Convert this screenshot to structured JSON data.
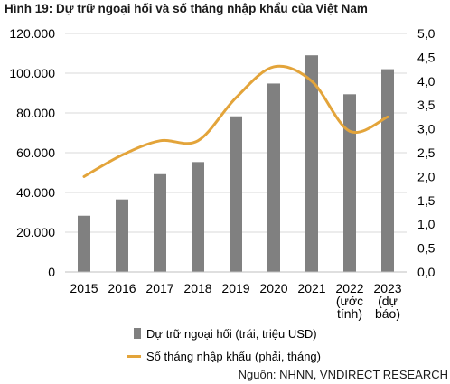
{
  "title": "Hình 19: Dự trữ ngoại hối và số tháng nhập khẩu của Việt Nam",
  "source": "Nguồn: NHNN, VNDIRECT RESEARCH",
  "chart_data": {
    "type": "bar",
    "categories": [
      [
        "2015"
      ],
      [
        "2016"
      ],
      [
        "2017"
      ],
      [
        "2018"
      ],
      [
        "2019"
      ],
      [
        "2020"
      ],
      [
        "2021"
      ],
      [
        "2022",
        "(ước",
        "tính)"
      ],
      [
        "2023",
        "(dự",
        "báo)"
      ]
    ],
    "series": [
      {
        "name": "Dự trữ ngoại hối (trái, triệu USD)",
        "type": "bar",
        "axis": "left",
        "color": "#808080",
        "values": [
          28300,
          36500,
          49200,
          55300,
          78300,
          94800,
          109000,
          89400,
          102000
        ]
      },
      {
        "name": "Số tháng nhập khẩu (phải, tháng)",
        "type": "line",
        "axis": "right",
        "color": "#E3A43A",
        "smooth": true,
        "values": [
          2.0,
          2.45,
          2.75,
          2.75,
          3.65,
          4.3,
          4.0,
          2.95,
          3.25
        ]
      }
    ],
    "y_left": {
      "ylim": [
        0,
        120000
      ],
      "ticks": [
        "0",
        "20.000",
        "40.000",
        "60.000",
        "80.000",
        "100.000",
        "120.000"
      ]
    },
    "y_right": {
      "ylim": [
        0,
        5
      ],
      "ticks": [
        "0,0",
        "0,5",
        "1,0",
        "1,5",
        "2,0",
        "2,5",
        "3,0",
        "3,5",
        "4,0",
        "4,5",
        "5,0"
      ]
    },
    "grid": true,
    "legend_position": "bottom"
  }
}
